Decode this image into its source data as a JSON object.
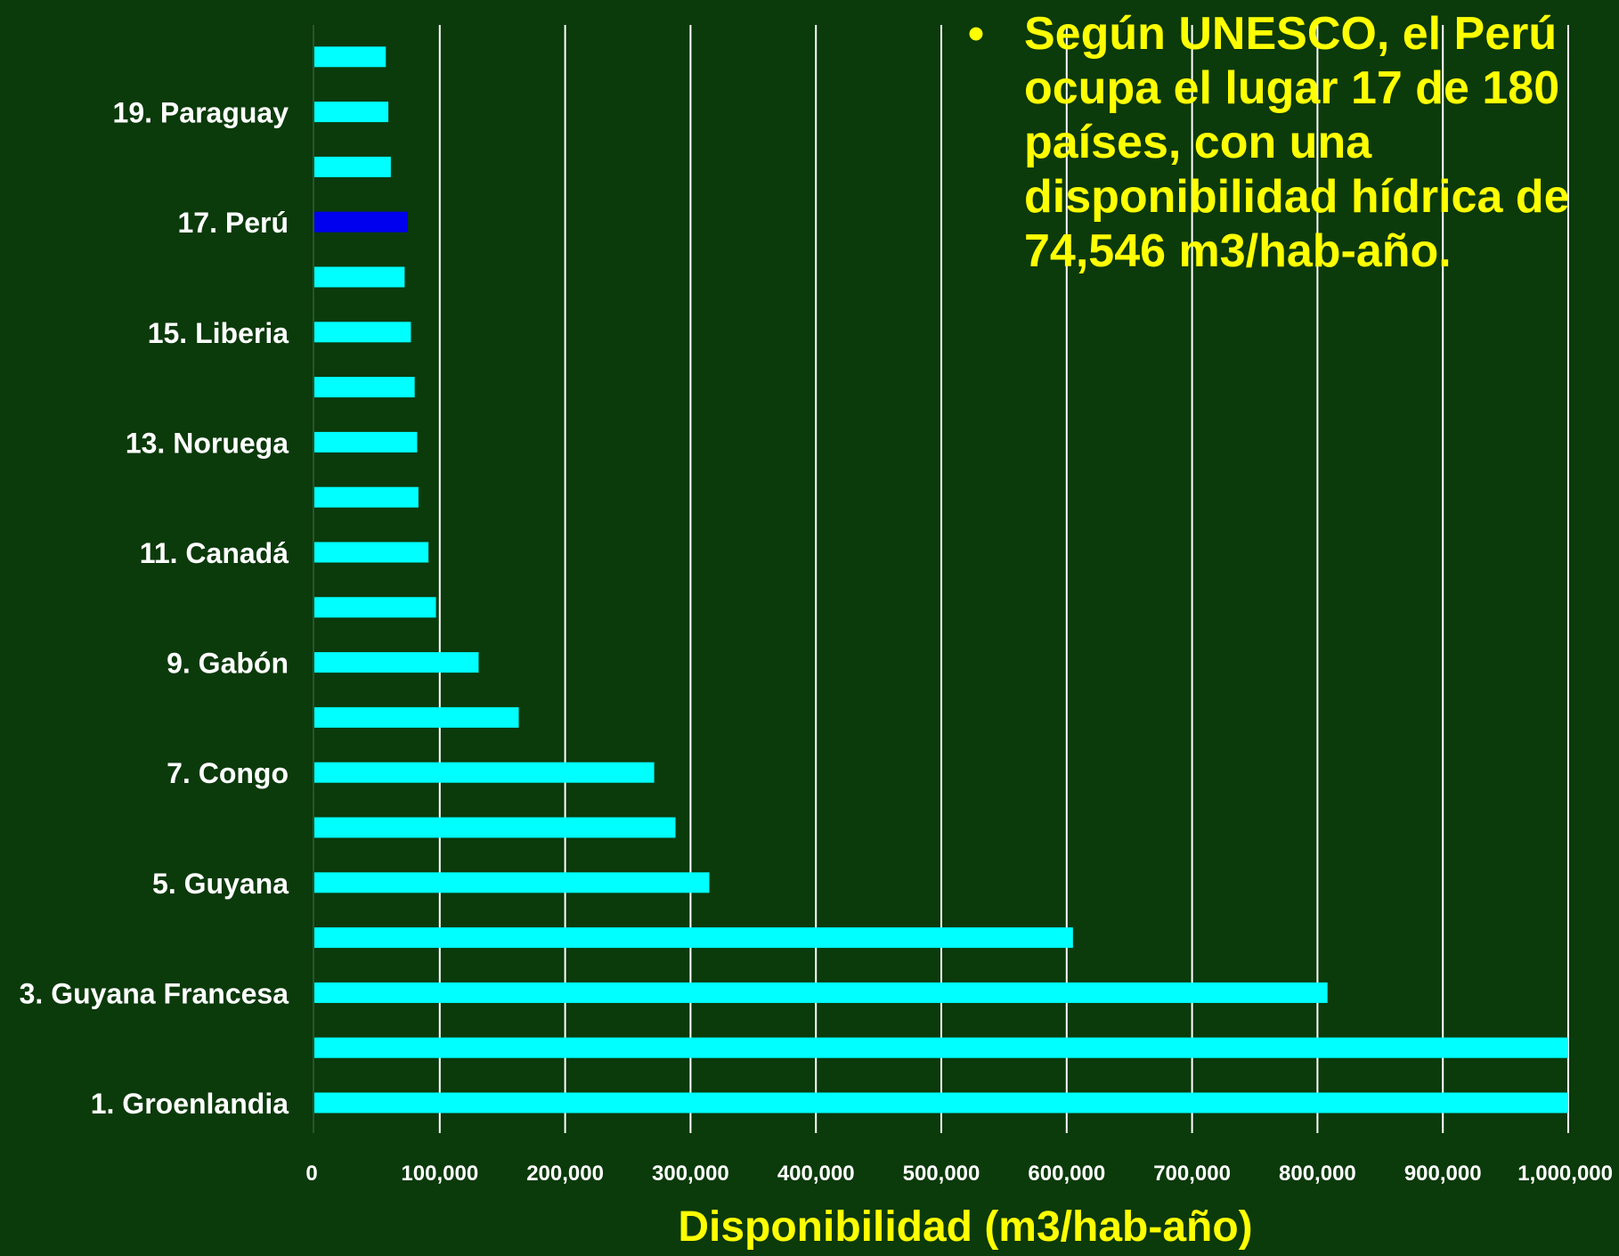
{
  "chart_data": {
    "type": "bar",
    "orientation": "horizontal",
    "categories": [
      "1. Groenlandia",
      "",
      "3. Guyana Francesa",
      "",
      "5. Guyana",
      "",
      "7. Congo",
      "",
      "9. Gabón",
      "",
      "11. Canadá",
      "",
      "13. Noruega",
      "",
      "15. Liberia",
      "",
      "17. Perú",
      "",
      "19. Paraguay",
      ""
    ],
    "values": [
      1000000,
      1000000,
      808000,
      605000,
      315000,
      288000,
      271000,
      163000,
      131000,
      97000,
      91000,
      83000,
      82000,
      80000,
      77000,
      72000,
      74546,
      61000,
      59000,
      57000
    ],
    "highlight_index": 16,
    "xlim": [
      0,
      1000000
    ],
    "xticks": [
      "0",
      "100,000",
      "200,000",
      "300,000",
      "400,000",
      "500,000",
      "600,000",
      "700,000",
      "800,000",
      "900,000",
      "1,000,000"
    ],
    "xlabel": "Disponibilidad (m3/hab-año)",
    "ylabel": "",
    "grid": "vertical",
    "colors": {
      "bar": "#00ffff",
      "highlight": "#0000ee",
      "background": "#0b3a0b",
      "grid": "#ffffff",
      "text": "#ffffff",
      "accent_text": "#ffff00"
    }
  },
  "callout": {
    "bullet": "•",
    "text": "Según UNESCO, el Perú ocupa el lugar 17 de 180 países, con una disponibilidad hídrica de 74,546 m3/hab-año."
  }
}
